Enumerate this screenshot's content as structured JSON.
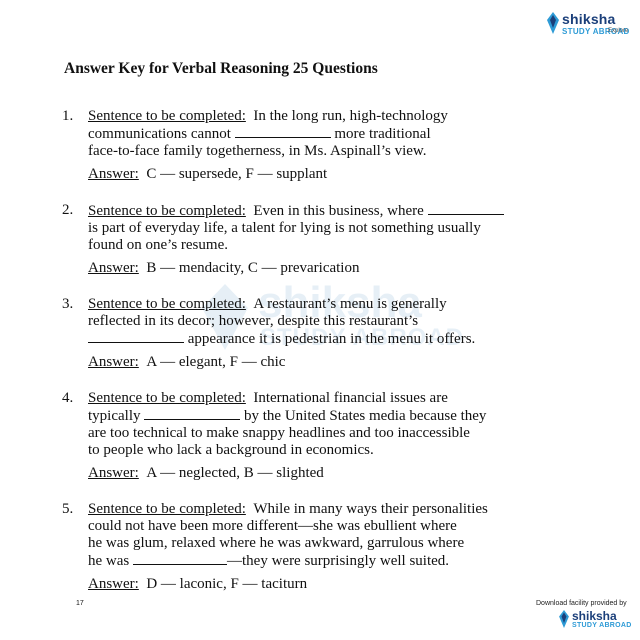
{
  "header_logo": {
    "name": "shiksha",
    "sub": "STUDY ABROAD",
    "sub2": "Explore"
  },
  "watermark": {
    "name": "shiksha",
    "sub": "STUDY ABROAD"
  },
  "title": "Answer Key for Verbal Reasoning 25 Questions",
  "questions": [
    {
      "number": "1.",
      "prompt_label": "Sentence to be completed:",
      "lines": [
        {
          "pre": "In the long run, high-technology",
          "blank": false,
          "post": ""
        },
        {
          "pre": "communications cannot ",
          "blank": true,
          "post": " more traditional"
        },
        {
          "pre": "face-to-face family togetherness, in Ms. Aspinall’s view.",
          "blank": false,
          "post": ""
        }
      ],
      "answer_label": "Answer:",
      "answer": "C — supersede, F — supplant"
    },
    {
      "number": "2.",
      "prompt_label": "Sentence to be completed:",
      "lines": [
        {
          "pre": "Even in this business, where ",
          "blank": true,
          "post": ""
        },
        {
          "pre": "is part of everyday life, a talent for lying is not something usually",
          "blank": false,
          "post": ""
        },
        {
          "pre": "found on one’s resume.",
          "blank": false,
          "post": ""
        }
      ],
      "answer_label": "Answer:",
      "answer": "B — mendacity, C — prevarication"
    },
    {
      "number": "3.",
      "prompt_label": "Sentence to be completed:",
      "lines": [
        {
          "pre": "A restaurant’s menu is generally",
          "blank": false,
          "post": ""
        },
        {
          "pre": "reflected in its decor; however, despite this restaurant’s",
          "blank": false,
          "post": ""
        },
        {
          "pre": "",
          "blank": true,
          "post": " appearance it is pedestrian in the menu it offers."
        }
      ],
      "answer_label": "Answer:",
      "answer": "A — elegant,  F — chic"
    },
    {
      "number": "4.",
      "prompt_label": "Sentence to be completed:",
      "lines": [
        {
          "pre": "International financial issues are",
          "blank": false,
          "post": ""
        },
        {
          "pre": "typically ",
          "blank": true,
          "post": " by the United States media because they"
        },
        {
          "pre": "are too technical to make snappy headlines and too inaccessible",
          "blank": false,
          "post": ""
        },
        {
          "pre": "to people who lack a background in economics.",
          "blank": false,
          "post": ""
        }
      ],
      "answer_label": "Answer:",
      "answer": "A — neglected, B — slighted"
    },
    {
      "number": "5.",
      "prompt_label": "Sentence to be completed:",
      "lines": [
        {
          "pre": "While in many ways their personalities",
          "blank": false,
          "post": ""
        },
        {
          "pre": "could not have been more different—she was ebullient where",
          "blank": false,
          "post": ""
        },
        {
          "pre": "he was glum, relaxed where he was awkward, garrulous where",
          "blank": false,
          "post": ""
        },
        {
          "pre": "he was ",
          "blank": true,
          "post": "—they were surprisingly well suited."
        }
      ],
      "answer_label": "Answer:",
      "answer": "D — laconic, F — taciturn"
    }
  ],
  "page_number": "17",
  "footer": {
    "provided_by": "Download facility provided by",
    "name": "shiksha",
    "sub": "STUDY ABROAD"
  },
  "colors": {
    "brand_dark": "#1b3f7a",
    "brand_light": "#2e9bd6"
  }
}
